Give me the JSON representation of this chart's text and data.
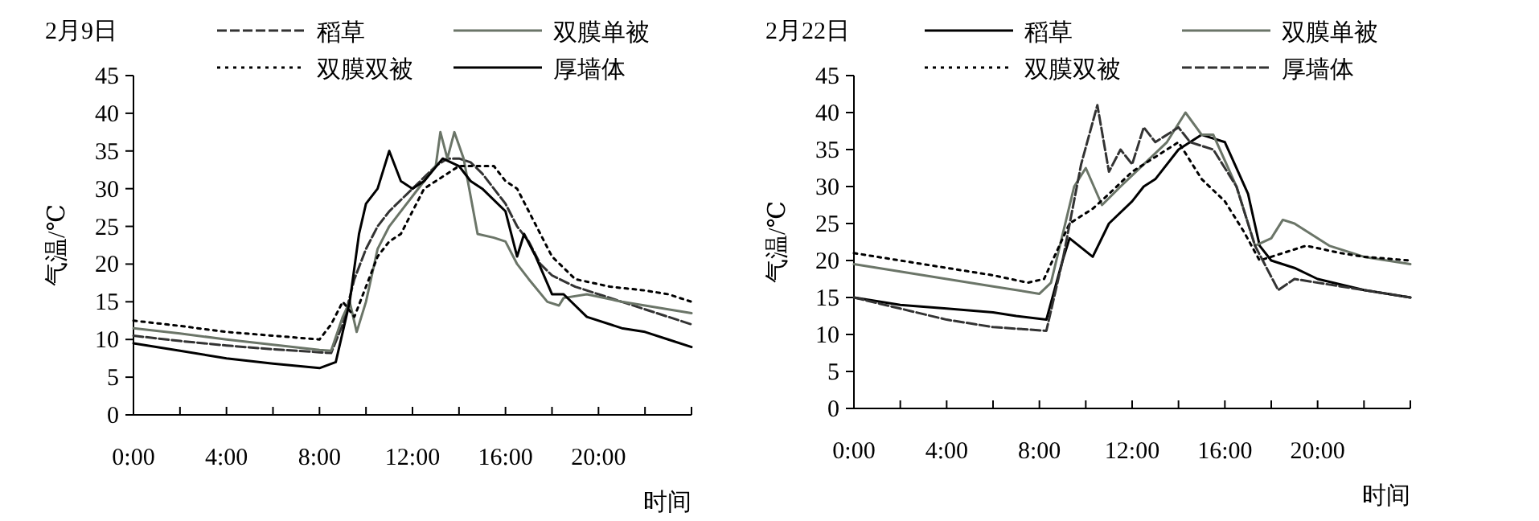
{
  "chart_data": [
    {
      "type": "line",
      "title": "2月9日",
      "xlabel": "时间",
      "ylabel": "气温/℃",
      "legend": "top",
      "xlim": [
        0,
        24
      ],
      "ylim": [
        0,
        45
      ],
      "xticks": [
        {
          "value": 0,
          "label": "0:00"
        },
        {
          "value": 2,
          "label": null
        },
        {
          "value": 4,
          "label": "4:00"
        },
        {
          "value": 6,
          "label": null
        },
        {
          "value": 8,
          "label": "8:00"
        },
        {
          "value": 10,
          "label": null
        },
        {
          "value": 12,
          "label": "12:00"
        },
        {
          "value": 14,
          "label": null
        },
        {
          "value": 16,
          "label": "16:00"
        },
        {
          "value": 18,
          "label": null
        },
        {
          "value": 20,
          "label": "20:00"
        },
        {
          "value": 22,
          "label": null
        },
        {
          "value": 24,
          "label": null
        }
      ],
      "yticks": [
        0,
        5,
        10,
        15,
        20,
        25,
        30,
        35,
        40,
        45
      ],
      "series": [
        {
          "name": "稻草",
          "color": "#333333",
          "line_style": "dashed",
          "x": [
            0,
            2,
            4,
            6,
            8,
            8.5,
            9,
            9.5,
            10,
            10.5,
            11,
            12,
            13,
            13.5,
            14,
            14.5,
            15,
            15.5,
            16,
            16.5,
            17,
            17.5,
            18,
            19,
            20,
            21,
            22,
            23,
            24
          ],
          "values": [
            10.5,
            9.8,
            9.2,
            8.7,
            8.3,
            8.2,
            12,
            18,
            22,
            25,
            27,
            30,
            33,
            34,
            34,
            33.5,
            32,
            30,
            28,
            25,
            23,
            20,
            18.5,
            17,
            16,
            15,
            14,
            13,
            12
          ]
        },
        {
          "name": "双膜单被",
          "color": "#6b7568",
          "line_style": "solid",
          "x": [
            0,
            2,
            4,
            6,
            8,
            8.5,
            9,
            9.3,
            9.6,
            10,
            10.5,
            11,
            12,
            13,
            13.2,
            13.5,
            13.8,
            14.2,
            14.8,
            15.5,
            16,
            16.5,
            17,
            17.8,
            18.3,
            18.5,
            19.5,
            21,
            22,
            23,
            24
          ],
          "values": [
            11.5,
            10.8,
            10,
            9.3,
            8.6,
            8.5,
            13,
            15,
            11,
            15,
            22,
            25,
            29,
            33,
            37.5,
            34,
            37.5,
            34,
            24,
            23.5,
            23,
            20,
            18,
            15,
            14.5,
            15.5,
            16,
            15,
            14.5,
            14,
            13.5
          ]
        },
        {
          "name": "双膜双被",
          "color": "#000000",
          "line_style": "dotted",
          "x": [
            0,
            2,
            4,
            6,
            8,
            8.5,
            9,
            9.5,
            10,
            10.5,
            11,
            11.5,
            12.5,
            13.5,
            14,
            15,
            15.5,
            16,
            16.5,
            17,
            17.5,
            18,
            19,
            20.5,
            22,
            23,
            24
          ],
          "values": [
            12.5,
            11.8,
            11,
            10.5,
            10,
            12,
            15,
            13,
            17,
            21,
            23,
            24,
            30,
            32,
            33,
            33,
            33,
            31,
            30,
            27,
            24,
            21,
            18,
            17,
            16.5,
            16,
            15
          ]
        },
        {
          "name": "厚墙体",
          "color": "#000000",
          "line_style": "solid",
          "x": [
            0,
            2,
            4,
            6,
            7,
            8,
            8.7,
            9.3,
            9.7,
            10,
            10.5,
            11,
            11.5,
            12,
            12.5,
            13.3,
            14,
            14.5,
            15,
            16,
            16.5,
            16.8,
            17.3,
            18,
            18.5,
            19.5,
            21,
            22,
            23,
            24
          ],
          "values": [
            9.5,
            8.5,
            7.5,
            6.8,
            6.5,
            6.2,
            7,
            15,
            24,
            28,
            30,
            35,
            31,
            30,
            31,
            34,
            33,
            31,
            30,
            27,
            21,
            24,
            21,
            16,
            16,
            13,
            11.5,
            11,
            10,
            9
          ]
        }
      ]
    },
    {
      "type": "line",
      "title": "2月22日",
      "xlabel": "时间",
      "ylabel": "气温/℃",
      "legend": "top",
      "xlim": [
        0,
        24
      ],
      "ylim": [
        0,
        45
      ],
      "xticks": [
        {
          "value": 0,
          "label": "0:00"
        },
        {
          "value": 2,
          "label": null
        },
        {
          "value": 4,
          "label": "4:00"
        },
        {
          "value": 6,
          "label": null
        },
        {
          "value": 8,
          "label": "8:00"
        },
        {
          "value": 10,
          "label": null
        },
        {
          "value": 12,
          "label": "12:00"
        },
        {
          "value": 14,
          "label": null
        },
        {
          "value": 16,
          "label": "16:00"
        },
        {
          "value": 18,
          "label": null
        },
        {
          "value": 20,
          "label": "20:00"
        },
        {
          "value": 22,
          "label": null
        },
        {
          "value": 24,
          "label": null
        }
      ],
      "yticks": [
        0,
        5,
        10,
        15,
        20,
        25,
        30,
        35,
        40,
        45
      ],
      "series": [
        {
          "name": "稻草",
          "color": "#000000",
          "line_style": "solid",
          "x": [
            0,
            2,
            4,
            6,
            7,
            8.3,
            9,
            9.3,
            10.3,
            11,
            12,
            12.5,
            13,
            14,
            15,
            16,
            17,
            17.5,
            18,
            19,
            20,
            22,
            24
          ],
          "values": [
            15,
            14,
            13.5,
            13,
            12.5,
            12,
            20,
            23,
            20.5,
            25,
            28,
            30,
            31,
            35,
            37,
            36,
            29,
            22,
            20,
            19,
            17.5,
            16,
            15
          ]
        },
        {
          "name": "双膜单被",
          "color": "#6b7568",
          "line_style": "solid",
          "x": [
            0,
            2,
            4,
            6,
            8,
            8.5,
            9.5,
            10,
            10.7,
            11.5,
            12.5,
            13.5,
            14.3,
            15,
            15.5,
            16.5,
            17.3,
            18,
            18.5,
            19,
            20.5,
            22,
            24
          ],
          "values": [
            19.5,
            18.5,
            17.5,
            16.5,
            15.5,
            17,
            30,
            32.5,
            27.5,
            30,
            33,
            36,
            40,
            37,
            37,
            30,
            22,
            23,
            25.5,
            25,
            22,
            20.5,
            19.5
          ]
        },
        {
          "name": "双膜双被",
          "color": "#000000",
          "line_style": "dotted",
          "x": [
            0,
            2,
            4,
            6,
            7.5,
            8.2,
            9.3,
            10.3,
            11,
            12,
            13,
            14,
            15,
            16,
            16.8,
            17.5,
            18.5,
            19.5,
            21,
            22,
            24
          ],
          "values": [
            21,
            20,
            19,
            18,
            17,
            17.5,
            25,
            27,
            29,
            32,
            34,
            36,
            31,
            28,
            24,
            20,
            21,
            22,
            21,
            20.5,
            20
          ]
        },
        {
          "name": "厚墙体",
          "color": "#333333",
          "line_style": "dashed",
          "x": [
            0,
            2,
            4,
            6,
            8.3,
            9,
            9.8,
            10.5,
            11,
            11.5,
            12,
            12.5,
            13,
            14,
            14.5,
            15.5,
            16.5,
            17.3,
            18.3,
            19,
            21,
            22,
            24
          ],
          "values": [
            15,
            13.5,
            12,
            11,
            10.5,
            20,
            33,
            41,
            32,
            35,
            33,
            38,
            36,
            38,
            36,
            35,
            30,
            22,
            16,
            17.5,
            16.5,
            16,
            15
          ]
        }
      ]
    }
  ]
}
